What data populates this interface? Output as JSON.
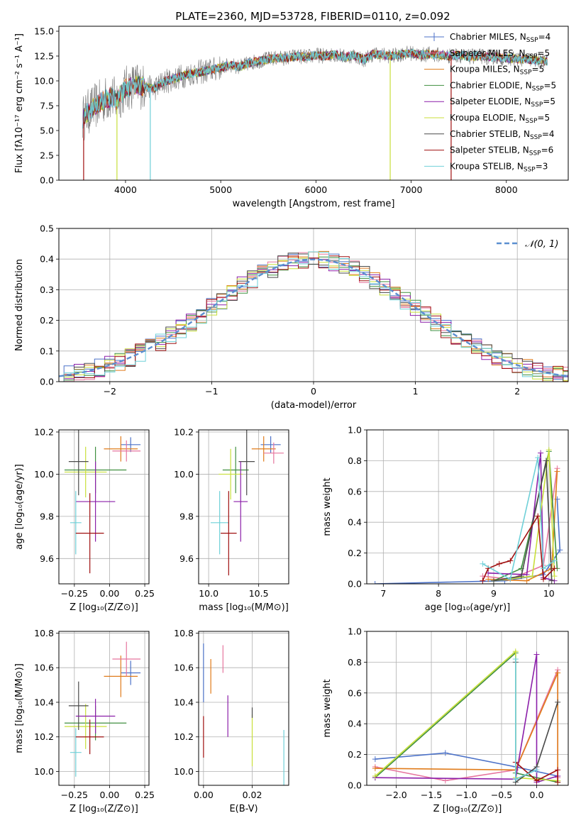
{
  "colors": {
    "blue": "#4c72c8",
    "orange": "#e07b1a",
    "pink": "#e6759e",
    "green": "#3f8f3f",
    "purple": "#8b1fa9",
    "yellowgreen": "#c8df3a",
    "darkgray": "#4a4a4a",
    "darkred": "#a01010",
    "cyan": "#6fd0d8",
    "gauss": "#5b8fd0"
  },
  "chart_data": [
    {
      "id": "spectrum",
      "type": "line",
      "title": "PLATE=2360, MJD=53728, FIBERID=0110, z=0.092",
      "xlabel": "wavelength [Angstrom, rest frame]",
      "ylabel": "Flux [fλ10⁻¹⁷ erg cm⁻² s⁻¹ A⁻¹]",
      "xlim": [
        3300,
        8650
      ],
      "ylim": [
        0,
        15.5
      ],
      "xticks": [
        4000,
        5000,
        6000,
        7000,
        8000
      ],
      "yticks": [
        0.0,
        2.5,
        5.0,
        7.5,
        10.0,
        12.5,
        15.0
      ],
      "ytick_labels": [
        "0.0",
        "2.5",
        "5.0",
        "7.5",
        "10.0",
        "12.5",
        "15.0"
      ],
      "legend": "upper-right",
      "series": [
        {
          "name": "Chabrier MILES, N_SSP=4",
          "label_text": "Chabrier MILES, N",
          "sub": "SSP",
          "tail": "=4",
          "color": "blue",
          "marker": "plus"
        },
        {
          "name": "Salpeter MILES, N_SSP=5",
          "label_text": "Salpeter MILES, N",
          "sub": "SSP",
          "tail": "=5",
          "color": "pink",
          "marker": "none"
        },
        {
          "name": "Kroupa MILES, N_SSP=5",
          "label_text": "Kroupa MILES, N",
          "sub": "SSP",
          "tail": "=5",
          "color": "orange",
          "marker": "none"
        },
        {
          "name": "Chabrier ELODIE, N_SSP=5",
          "label_text": "Chabrier ELODIE, N",
          "sub": "SSP",
          "tail": "=5",
          "color": "green",
          "marker": "none"
        },
        {
          "name": "Salpeter ELODIE, N_SSP=5",
          "label_text": "Salpeter ELODIE, N",
          "sub": "SSP",
          "tail": "=5",
          "color": "purple",
          "marker": "none"
        },
        {
          "name": "Kroupa ELODIE, N_SSP=5",
          "label_text": "Kroupa ELODIE, N",
          "sub": "SSP",
          "tail": "=5",
          "color": "yellowgreen",
          "marker": "none"
        },
        {
          "name": "Chabrier STELIB, N_SSP=4",
          "label_text": "Chabrier STELIB, N",
          "sub": "SSP",
          "tail": "=4",
          "color": "darkgray",
          "marker": "none"
        },
        {
          "name": "Salpeter STELIB, N_SSP=6",
          "label_text": "Salpeter STELIB, N",
          "sub": "SSP",
          "tail": "=6",
          "color": "darkred",
          "marker": "none"
        },
        {
          "name": "Kroupa STELIB, N_SSP=3",
          "label_text": "Kroupa STELIB, N",
          "sub": "SSP",
          "tail": "=3",
          "color": "cyan",
          "marker": "none"
        }
      ],
      "data": {
        "wavelength": [
          3550,
          3600,
          3650,
          3700,
          3750,
          3800,
          3850,
          3900,
          3950,
          4000,
          4100,
          4200,
          4300,
          4400,
          4500,
          4600,
          4700,
          4800,
          4900,
          5000,
          5100,
          5200,
          5300,
          5400,
          5500,
          5600,
          5700,
          5800,
          5900,
          6000,
          6100,
          6200,
          6300,
          6400,
          6500,
          6600,
          6700,
          6800,
          6900,
          7000,
          7100,
          7200,
          7300,
          7400,
          7500,
          7600,
          7700,
          7800,
          7900,
          8000,
          8100,
          8200,
          8300,
          8400
        ],
        "model_flux": [
          6.2,
          6.8,
          7.2,
          7.6,
          7.9,
          8.2,
          8.4,
          8.0,
          8.6,
          9.2,
          9.6,
          9.4,
          9.2,
          9.9,
          10.2,
          10.5,
          10.8,
          10.9,
          11.1,
          11.3,
          11.6,
          11.4,
          11.8,
          12.0,
          12.2,
          12.3,
          12.3,
          12.5,
          12.4,
          12.6,
          12.5,
          12.7,
          12.4,
          12.6,
          12.1,
          12.7,
          12.6,
          12.5,
          12.7,
          12.8,
          12.6,
          12.7,
          12.6,
          12.5,
          12.6,
          12.4,
          12.5,
          12.4,
          12.4,
          12.3,
          12.2,
          12.2,
          12.1,
          12.0
        ],
        "drop_lines": [
          {
            "x": 3560,
            "color": "darkred"
          },
          {
            "x": 3910,
            "color": "yellowgreen"
          },
          {
            "x": 4260,
            "color": "cyan"
          },
          {
            "x": 6780,
            "color": "yellowgreen"
          },
          {
            "x": 7420,
            "color": "darkred"
          }
        ]
      }
    },
    {
      "id": "residuals",
      "type": "step",
      "xlabel": "(data-model)/error",
      "ylabel": "Normed distribution",
      "xlim": [
        -2.5,
        2.5
      ],
      "ylim": [
        0,
        0.5
      ],
      "xticks": [
        -2,
        -1,
        0,
        1,
        2
      ],
      "xtick_labels": [
        "−2",
        "−1",
        "0",
        "1",
        "2"
      ],
      "yticks": [
        0.0,
        0.1,
        0.2,
        0.3,
        0.4,
        0.5
      ],
      "ytick_labels": [
        "0.0",
        "0.1",
        "0.2",
        "0.3",
        "0.4",
        "0.5"
      ],
      "grid": true,
      "legend": "upper-right",
      "gauss_label": "𝒩(0, 1)",
      "bin_width": 0.1
    },
    {
      "id": "age-vs-Z",
      "type": "errorbar",
      "xlabel": "Z [log₁₀(Z/Z⊙)]",
      "ylabel": "age  [log₁₀(age/yr)]",
      "xlim": [
        -0.36,
        0.28
      ],
      "ylim": [
        9.48,
        10.21
      ],
      "xticks": [
        -0.25,
        0.0,
        0.25
      ],
      "xtick_labels": [
        "−0.25",
        "0.00",
        "0.25"
      ],
      "yticks": [
        9.6,
        9.8,
        10.0,
        10.2
      ],
      "ytick_labels": [
        "9.6",
        "9.8",
        "10.0",
        "10.2"
      ],
      "points": [
        {
          "color": "blue",
          "x": 0.15,
          "xerr": 0.07,
          "y": 10.14,
          "yerr": 0.035
        },
        {
          "color": "orange",
          "x": 0.08,
          "xerr": 0.12,
          "y": 10.12,
          "yerr": 0.06
        },
        {
          "color": "pink",
          "x": 0.12,
          "xerr": 0.1,
          "y": 10.11,
          "yerr": 0.05
        },
        {
          "color": "green",
          "x": -0.1,
          "xerr": 0.22,
          "y": 10.02,
          "yerr": 0.11
        },
        {
          "color": "yellowgreen",
          "x": -0.17,
          "xerr": 0.15,
          "y": 10.01,
          "yerr": 0.12
        },
        {
          "color": "darkgray",
          "x": -0.22,
          "xerr": 0.07,
          "y": 10.06,
          "yerr": 0.16
        },
        {
          "color": "purple",
          "x": -0.1,
          "xerr": 0.14,
          "y": 9.87,
          "yerr": 0.19
        },
        {
          "color": "cyan",
          "x": -0.24,
          "xerr": 0.04,
          "y": 9.77,
          "yerr": 0.15
        },
        {
          "color": "darkred",
          "x": -0.14,
          "xerr": 0.1,
          "y": 9.72,
          "yerr": 0.19
        }
      ]
    },
    {
      "id": "age-vs-mass",
      "type": "errorbar",
      "xlabel": "mass [log₁₀(M/M⊙)]",
      "ylabel": "",
      "xlim": [
        9.9,
        10.8
      ],
      "ylim": [
        9.48,
        10.21
      ],
      "xticks": [
        10.0,
        10.5
      ],
      "xtick_labels": [
        "10.0",
        "10.5"
      ],
      "yticks": [
        9.6,
        9.8,
        10.0,
        10.2
      ],
      "ytick_labels": [
        "9.6",
        "9.8",
        "10.0",
        "10.2"
      ],
      "points": [
        {
          "color": "blue",
          "x": 10.62,
          "xerr": 0.1,
          "y": 10.14,
          "yerr": 0.04
        },
        {
          "color": "orange",
          "x": 10.55,
          "xerr": 0.12,
          "y": 10.12,
          "yerr": 0.06
        },
        {
          "color": "pink",
          "x": 10.65,
          "xerr": 0.1,
          "y": 10.1,
          "yerr": 0.05
        },
        {
          "color": "green",
          "x": 10.27,
          "xerr": 0.13,
          "y": 10.02,
          "yerr": 0.11
        },
        {
          "color": "yellowgreen",
          "x": 10.22,
          "xerr": 0.12,
          "y": 10.0,
          "yerr": 0.12
        },
        {
          "color": "darkgray",
          "x": 10.38,
          "xerr": 0.08,
          "y": 10.06,
          "yerr": 0.16
        },
        {
          "color": "purple",
          "x": 10.32,
          "xerr": 0.07,
          "y": 9.87,
          "yerr": 0.19
        },
        {
          "color": "cyan",
          "x": 10.11,
          "xerr": 0.09,
          "y": 9.77,
          "yerr": 0.15
        },
        {
          "color": "darkred",
          "x": 10.2,
          "xerr": 0.08,
          "y": 9.72,
          "yerr": 0.2
        }
      ]
    },
    {
      "id": "weight-vs-age",
      "type": "line",
      "xlabel": "age  [log₁₀(age/yr)]",
      "ylabel": "mass weight",
      "xlim": [
        6.7,
        10.35
      ],
      "ylim": [
        0,
        1.0
      ],
      "xticks": [
        7,
        8,
        9,
        10
      ],
      "xtick_labels": [
        "7",
        "8",
        "9",
        "10"
      ],
      "yticks": [
        0.0,
        0.2,
        0.4,
        0.6,
        0.8,
        1.0
      ],
      "ytick_labels": [
        "0.0",
        "0.2",
        "0.4",
        "0.6",
        "0.8",
        "1.0"
      ],
      "grid": true,
      "series": [
        {
          "color": "blue",
          "x": [
            6.85,
            9.2,
            9.9,
            10.2,
            10.15
          ],
          "y": [
            0.0,
            0.02,
            0.06,
            0.22,
            0.55
          ]
        },
        {
          "color": "pink",
          "x": [
            8.8,
            9.3,
            9.9,
            10.15
          ],
          "y": [
            0.05,
            0.03,
            0.12,
            0.75
          ]
        },
        {
          "color": "orange",
          "x": [
            8.9,
            9.6,
            10.05,
            10.15
          ],
          "y": [
            0.03,
            0.02,
            0.1,
            0.73
          ]
        },
        {
          "color": "green",
          "x": [
            9.0,
            9.5,
            10.0,
            10.15
          ],
          "y": [
            0.02,
            0.1,
            0.86,
            0.1
          ]
        },
        {
          "color": "purple",
          "x": [
            8.9,
            9.6,
            9.85,
            9.9,
            10.1
          ],
          "y": [
            0.07,
            0.06,
            0.85,
            0.04,
            0.02
          ]
        },
        {
          "color": "yellowgreen",
          "x": [
            9.0,
            9.7,
            10.0,
            10.1
          ],
          "y": [
            0.02,
            0.05,
            0.87,
            0.05
          ]
        },
        {
          "color": "darkgray",
          "x": [
            9.0,
            9.5,
            9.95,
            10.05
          ],
          "y": [
            0.02,
            0.05,
            0.8,
            0.02
          ]
        },
        {
          "color": "darkred",
          "x": [
            8.8,
            8.9,
            9.1,
            9.3,
            9.8,
            9.9,
            10.1
          ],
          "y": [
            0.02,
            0.1,
            0.13,
            0.15,
            0.44,
            0.03,
            0.1
          ]
        },
        {
          "color": "cyan",
          "x": [
            8.8,
            9.3,
            9.8,
            9.9,
            10.1
          ],
          "y": [
            0.13,
            0.03,
            0.82,
            0.1,
            0.15
          ]
        }
      ]
    },
    {
      "id": "mass-vs-Z",
      "type": "errorbar",
      "xlabel": "Z [log₁₀(Z/Z⊙)]",
      "ylabel": "mass [log₁₀(M/M⊙)]",
      "xlim": [
        -0.36,
        0.28
      ],
      "ylim": [
        9.92,
        10.81
      ],
      "xticks": [
        -0.25,
        0.0,
        0.25
      ],
      "xtick_labels": [
        "−0.25",
        "0.00",
        "0.25"
      ],
      "yticks": [
        10.0,
        10.2,
        10.4,
        10.6,
        10.8
      ],
      "ytick_labels": [
        "10.0",
        "10.2",
        "10.4",
        "10.6",
        "10.8"
      ],
      "points": [
        {
          "color": "blue",
          "x": 0.15,
          "xerr": 0.07,
          "y": 10.57,
          "yerr": 0.07
        },
        {
          "color": "orange",
          "x": 0.08,
          "xerr": 0.12,
          "y": 10.55,
          "yerr": 0.12
        },
        {
          "color": "pink",
          "x": 0.12,
          "xerr": 0.1,
          "y": 10.65,
          "yerr": 0.1
        },
        {
          "color": "green",
          "x": -0.1,
          "xerr": 0.22,
          "y": 10.28,
          "yerr": 0.1
        },
        {
          "color": "yellowgreen",
          "x": -0.17,
          "xerr": 0.15,
          "y": 10.26,
          "yerr": 0.13
        },
        {
          "color": "darkgray",
          "x": -0.22,
          "xerr": 0.07,
          "y": 10.38,
          "yerr": 0.14
        },
        {
          "color": "purple",
          "x": -0.1,
          "xerr": 0.14,
          "y": 10.32,
          "yerr": 0.1
        },
        {
          "color": "cyan",
          "x": -0.24,
          "xerr": 0.04,
          "y": 10.11,
          "yerr": 0.14
        },
        {
          "color": "darkred",
          "x": -0.14,
          "xerr": 0.1,
          "y": 10.2,
          "yerr": 0.1
        }
      ]
    },
    {
      "id": "mass-vs-EBV",
      "type": "errorbar",
      "xlabel": "E(B-V)",
      "ylabel": "",
      "xlim": [
        -0.002,
        0.035
      ],
      "ylim": [
        9.92,
        10.81
      ],
      "xticks": [
        0.0,
        0.02
      ],
      "xtick_labels": [
        "0.00",
        "0.02"
      ],
      "yticks": [
        10.0,
        10.2,
        10.4,
        10.6,
        10.8
      ],
      "ytick_labels": [
        "10.0",
        "10.2",
        "10.4",
        "10.6",
        "10.8"
      ],
      "points": [
        {
          "color": "blue",
          "x": 0.0,
          "xerr": 0.0,
          "y": 10.57,
          "yerr": 0.17
        },
        {
          "color": "orange",
          "x": 0.003,
          "xerr": 0.0,
          "y": 10.55,
          "yerr": 0.1
        },
        {
          "color": "pink",
          "x": 0.008,
          "xerr": 0.0,
          "y": 10.65,
          "yerr": 0.08
        },
        {
          "color": "purple",
          "x": 0.01,
          "xerr": 0.0,
          "y": 10.32,
          "yerr": 0.12
        },
        {
          "color": "darkred",
          "x": 0.0,
          "xerr": 0.0,
          "y": 10.2,
          "yerr": 0.12
        },
        {
          "color": "yellowgreen",
          "x": 0.02,
          "xerr": 0.0,
          "y": 10.18,
          "yerr": 0.15
        },
        {
          "color": "darkgray",
          "x": 0.02,
          "xerr": 0.0,
          "y": 10.34,
          "yerr": 0.03
        },
        {
          "color": "cyan",
          "x": 0.033,
          "xerr": 0.0,
          "y": 10.08,
          "yerr": 0.16
        }
      ]
    },
    {
      "id": "weight-vs-Z",
      "type": "line",
      "xlabel": "Z [log₁₀(Z/Z⊙)]",
      "ylabel": "mass weight",
      "xlim": [
        -2.42,
        0.45
      ],
      "ylim": [
        0,
        1.0
      ],
      "xticks": [
        -2.0,
        -1.5,
        -1.0,
        -0.5,
        0.0
      ],
      "xtick_labels": [
        "−2.0",
        "−1.5",
        "−1.0",
        "−0.5",
        "0.0"
      ],
      "yticks": [
        0.0,
        0.2,
        0.4,
        0.6,
        0.8,
        1.0
      ],
      "ytick_labels": [
        "0.0",
        "0.2",
        "0.4",
        "0.6",
        "0.8",
        "1.0"
      ],
      "grid": true,
      "series": [
        {
          "color": "blue",
          "x": [
            -2.3,
            -1.3,
            -0.3,
            0.3
          ],
          "y": [
            0.17,
            0.21,
            0.12,
            0.06
          ]
        },
        {
          "color": "pink",
          "x": [
            -2.3,
            -1.3,
            -0.3,
            0.3,
            0.3
          ],
          "y": [
            0.12,
            0.03,
            0.1,
            0.75,
            0.05
          ]
        },
        {
          "color": "orange",
          "x": [
            -2.3,
            -0.3,
            0.3,
            0.3
          ],
          "y": [
            0.11,
            0.1,
            0.73,
            0.03
          ]
        },
        {
          "color": "green",
          "x": [
            -2.3,
            -0.3,
            -0.3,
            0.3
          ],
          "y": [
            0.05,
            0.86,
            0.08,
            0.02
          ]
        },
        {
          "color": "purple",
          "x": [
            -2.3,
            -0.3,
            0.0,
            0.0,
            0.3
          ],
          "y": [
            0.05,
            0.04,
            0.85,
            0.02,
            0.06
          ]
        },
        {
          "color": "yellowgreen",
          "x": [
            -2.3,
            -0.3,
            -0.3,
            0.3
          ],
          "y": [
            0.06,
            0.87,
            0.05,
            0.03
          ]
        },
        {
          "color": "darkgray",
          "x": [
            -0.3,
            -0.3,
            0.0,
            0.3
          ],
          "y": [
            0.8,
            0.02,
            0.12,
            0.54
          ]
        },
        {
          "color": "darkred",
          "x": [
            -0.3,
            0.0,
            0.3,
            0.3
          ],
          "y": [
            0.15,
            0.03,
            0.1,
            0.02
          ]
        },
        {
          "color": "cyan",
          "x": [
            -0.3,
            -0.3,
            0.0
          ],
          "y": [
            0.82,
            0.04,
            0.1
          ]
        }
      ]
    }
  ]
}
